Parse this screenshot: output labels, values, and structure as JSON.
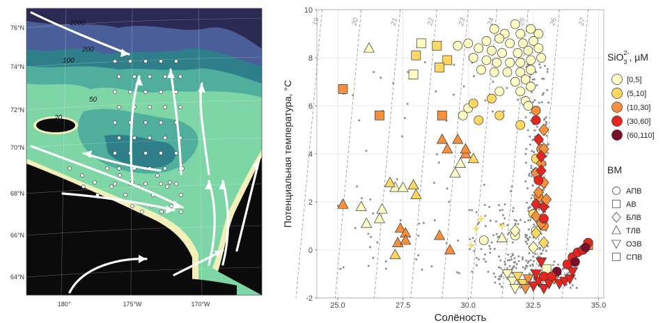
{
  "map": {
    "lat_labels": [
      "76°N",
      "74°N",
      "72°N",
      "70°N",
      "68°N",
      "66°N",
      "64°N"
    ],
    "lon_labels": [
      "180°",
      "175°W",
      "170°W"
    ],
    "depth_labels": [
      "1000",
      "200",
      "100",
      "50",
      "20"
    ],
    "colors": {
      "land": "#0b0b0b",
      "coast": "#f3efb9",
      "shelf_light": "#7ed6a6",
      "shelf_mid": "#4fae9c",
      "shelf_dark": "#2f7f8a",
      "slope": "#4a5f9a",
      "deep": "#2a2a55",
      "abyss": "#1a1730"
    }
  },
  "chart_data": {
    "type": "scatter",
    "xlabel": "Солёность",
    "ylabel": "Потенциальная температура, °C",
    "xlim": [
      24.2,
      35.2
    ],
    "ylim": [
      -2,
      10
    ],
    "xticks": [
      "25.0",
      "27.5",
      "30.0",
      "32.5",
      "35.0"
    ],
    "yticks": [
      "-2",
      "0",
      "2",
      "4",
      "6",
      "8",
      "10"
    ],
    "density_isolines": [
      "19",
      "20",
      "21",
      "22",
      "23",
      "24",
      "25",
      "26",
      "27"
    ],
    "grid": true,
    "legend_si": {
      "title_main": "SiO",
      "title_sub": "3",
      "title_sup": "2-",
      "title_unit": ", µM",
      "labels": [
        "[0,5]",
        "(5,10]",
        "(10,30]",
        "(30,60]",
        "(60,110]"
      ],
      "colors": [
        "#ffffc4",
        "#fdd862",
        "#f6903c",
        "#e3261f",
        "#7b0f2a"
      ]
    },
    "legend_wm": {
      "title": "ВМ",
      "labels": [
        "АПВ",
        "АВ",
        "БЛВ",
        "ТЛВ",
        "ОЗВ",
        "СПВ"
      ],
      "shapes": [
        "circle",
        "square",
        "diamond",
        "triangle",
        "triangle-down",
        "square"
      ]
    },
    "points": [
      {
        "s": 31.0,
        "t": 9.2,
        "m": "circle",
        "c": 0
      },
      {
        "s": 31.4,
        "t": 9.0,
        "m": "circle",
        "c": 0
      },
      {
        "s": 31.8,
        "t": 9.4,
        "m": "circle",
        "c": 0
      },
      {
        "s": 32.0,
        "t": 9.0,
        "m": "circle",
        "c": 0
      },
      {
        "s": 32.4,
        "t": 9.2,
        "m": "circle",
        "c": 0
      },
      {
        "s": 32.7,
        "t": 9.0,
        "m": "circle",
        "c": 0
      },
      {
        "s": 30.7,
        "t": 8.7,
        "m": "circle",
        "c": 0
      },
      {
        "s": 31.2,
        "t": 8.8,
        "m": "circle",
        "c": 0
      },
      {
        "s": 31.6,
        "t": 8.6,
        "m": "circle",
        "c": 0
      },
      {
        "s": 32.1,
        "t": 8.6,
        "m": "circle",
        "c": 0
      },
      {
        "s": 32.5,
        "t": 8.7,
        "m": "circle",
        "c": 0
      },
      {
        "s": 30.0,
        "t": 8.6,
        "m": "circle",
        "c": 0
      },
      {
        "s": 29.6,
        "t": 8.5,
        "m": "circle",
        "c": 0
      },
      {
        "s": 30.4,
        "t": 8.4,
        "m": "circle",
        "c": 0
      },
      {
        "s": 30.9,
        "t": 8.3,
        "m": "circle",
        "c": 0
      },
      {
        "s": 31.3,
        "t": 8.2,
        "m": "circle",
        "c": 0
      },
      {
        "s": 31.9,
        "t": 8.2,
        "m": "circle",
        "c": 0
      },
      {
        "s": 32.3,
        "t": 8.3,
        "m": "circle",
        "c": 0
      },
      {
        "s": 32.7,
        "t": 8.4,
        "m": "circle",
        "c": 0
      },
      {
        "s": 30.2,
        "t": 8.0,
        "m": "circle",
        "c": 0
      },
      {
        "s": 30.7,
        "t": 7.9,
        "m": "circle",
        "c": 0
      },
      {
        "s": 31.1,
        "t": 7.8,
        "m": "circle",
        "c": 0
      },
      {
        "s": 31.6,
        "t": 7.8,
        "m": "circle",
        "c": 0
      },
      {
        "s": 32.0,
        "t": 7.8,
        "m": "circle",
        "c": 0
      },
      {
        "s": 32.4,
        "t": 7.9,
        "m": "circle",
        "c": 0
      },
      {
        "s": 32.8,
        "t": 8.0,
        "m": "circle",
        "c": 0
      },
      {
        "s": 30.5,
        "t": 7.5,
        "m": "circle",
        "c": 0
      },
      {
        "s": 31.0,
        "t": 7.4,
        "m": "circle",
        "c": 0
      },
      {
        "s": 31.5,
        "t": 7.4,
        "m": "circle",
        "c": 0
      },
      {
        "s": 32.0,
        "t": 7.4,
        "m": "circle",
        "c": 0
      },
      {
        "s": 32.4,
        "t": 7.5,
        "m": "circle",
        "c": 0
      },
      {
        "s": 32.2,
        "t": 7.1,
        "m": "circle",
        "c": 0
      },
      {
        "s": 31.8,
        "t": 7.0,
        "m": "circle",
        "c": 0
      },
      {
        "s": 32.4,
        "t": 6.8,
        "m": "circle",
        "c": 0
      },
      {
        "s": 32.0,
        "t": 6.6,
        "m": "circle",
        "c": 0
      },
      {
        "s": 31.2,
        "t": 6.6,
        "m": "circle",
        "c": 0
      },
      {
        "s": 32.2,
        "t": 6.2,
        "m": "circle",
        "c": 0
      },
      {
        "s": 30.0,
        "t": 5.9,
        "m": "circle",
        "c": 0
      },
      {
        "s": 32.3,
        "t": 6.0,
        "m": "circle",
        "c": 0
      },
      {
        "s": 29.8,
        "t": 5.6,
        "m": "circle",
        "c": 0
      },
      {
        "s": 31.2,
        "t": 5.6,
        "m": "circle",
        "c": 1
      },
      {
        "s": 30.2,
        "t": 6.1,
        "m": "circle",
        "c": 1
      },
      {
        "s": 32.0,
        "t": 5.2,
        "m": "circle",
        "c": 1
      },
      {
        "s": 30.9,
        "t": 6.3,
        "m": "circle",
        "c": 1
      },
      {
        "s": 30.4,
        "t": 5.4,
        "m": "circle",
        "c": 1
      },
      {
        "s": 32.6,
        "t": 3.8,
        "m": "circle",
        "c": 1
      },
      {
        "s": 32.5,
        "t": 1.5,
        "m": "circle",
        "c": 1
      },
      {
        "s": 32.6,
        "t": 0.8,
        "m": "circle",
        "c": 0
      },
      {
        "s": 31.8,
        "t": 0.6,
        "m": "circle",
        "c": 0
      },
      {
        "s": 30.6,
        "t": 0.4,
        "m": "circle",
        "c": 0
      },
      {
        "s": 32.8,
        "t": 4.2,
        "m": "circle",
        "c": 2
      },
      {
        "s": 32.7,
        "t": 2.2,
        "m": "circle",
        "c": 2
      },
      {
        "s": 32.9,
        "t": 1.0,
        "m": "circle",
        "c": 2
      },
      {
        "s": 32.6,
        "t": 5.8,
        "m": "circle",
        "c": 2
      },
      {
        "s": 28.2,
        "t": 8.6,
        "m": "square",
        "c": 0
      },
      {
        "s": 28.0,
        "t": 8.1,
        "m": "square",
        "c": 1
      },
      {
        "s": 28.8,
        "t": 8.5,
        "m": "square",
        "c": 1
      },
      {
        "s": 29.2,
        "t": 7.9,
        "m": "square",
        "c": 1
      },
      {
        "s": 27.9,
        "t": 7.3,
        "m": "square",
        "c": 0
      },
      {
        "s": 28.9,
        "t": 7.6,
        "m": "square",
        "c": 1
      },
      {
        "s": 25.2,
        "t": 6.7,
        "m": "square",
        "c": 2
      },
      {
        "s": 26.6,
        "t": 5.6,
        "m": "square",
        "c": 2
      },
      {
        "s": 29.0,
        "t": 5.6,
        "m": "square",
        "c": 2
      },
      {
        "s": 34.6,
        "t": 0.2,
        "m": "square",
        "c": 2
      },
      {
        "s": 33.0,
        "t": -0.8,
        "m": "square",
        "c": 0
      },
      {
        "s": 32.7,
        "t": -1.2,
        "m": "square",
        "c": 0
      },
      {
        "s": 32.9,
        "t": 4.2,
        "m": "diamond",
        "c": 2
      },
      {
        "s": 32.8,
        "t": 3.6,
        "m": "diamond",
        "c": 2
      },
      {
        "s": 32.6,
        "t": 3.2,
        "m": "diamond",
        "c": 2
      },
      {
        "s": 32.9,
        "t": 2.8,
        "m": "diamond",
        "c": 2
      },
      {
        "s": 32.7,
        "t": 2.4,
        "m": "diamond",
        "c": 2
      },
      {
        "s": 32.9,
        "t": 1.8,
        "m": "diamond",
        "c": 3
      },
      {
        "s": 32.6,
        "t": 1.4,
        "m": "diamond",
        "c": 2
      },
      {
        "s": 32.8,
        "t": 1.1,
        "m": "diamond",
        "c": 2
      },
      {
        "s": 32.6,
        "t": 0.7,
        "m": "diamond",
        "c": 1
      },
      {
        "s": 32.9,
        "t": 0.3,
        "m": "diamond",
        "c": 1
      },
      {
        "s": 32.7,
        "t": 4.6,
        "m": "diamond",
        "c": 3
      },
      {
        "s": 32.9,
        "t": 5.0,
        "m": "diamond",
        "c": 2
      },
      {
        "s": 32.8,
        "t": 3.3,
        "m": "diamond",
        "c": 3
      },
      {
        "s": 33.0,
        "t": 2.1,
        "m": "diamond",
        "c": 2
      },
      {
        "s": 31.8,
        "t": 0.8,
        "m": "diamond",
        "c": 0
      },
      {
        "s": 32.5,
        "t": 0.1,
        "m": "diamond",
        "c": 0
      },
      {
        "s": 26.2,
        "t": 8.4,
        "m": "triangle",
        "c": 0
      },
      {
        "s": 25.2,
        "t": 1.9,
        "m": "triangle",
        "c": 2
      },
      {
        "s": 25.9,
        "t": 1.8,
        "m": "triangle",
        "c": 0
      },
      {
        "s": 26.7,
        "t": 1.7,
        "m": "triangle",
        "c": 0
      },
      {
        "s": 27.2,
        "t": 2.6,
        "m": "triangle",
        "c": 0
      },
      {
        "s": 27.0,
        "t": 2.8,
        "m": "triangle",
        "c": 1
      },
      {
        "s": 27.5,
        "t": 2.6,
        "m": "triangle",
        "c": 0
      },
      {
        "s": 27.9,
        "t": 2.7,
        "m": "triangle",
        "c": 1
      },
      {
        "s": 28.0,
        "t": 2.3,
        "m": "triangle",
        "c": 1
      },
      {
        "s": 26.1,
        "t": 1.1,
        "m": "triangle",
        "c": 0
      },
      {
        "s": 26.6,
        "t": 1.3,
        "m": "triangle",
        "c": 0
      },
      {
        "s": 27.4,
        "t": 0.9,
        "m": "triangle",
        "c": 2
      },
      {
        "s": 27.6,
        "t": 0.7,
        "m": "triangle",
        "c": 2
      },
      {
        "s": 27.3,
        "t": 0.3,
        "m": "triangle",
        "c": 2
      },
      {
        "s": 27.6,
        "t": 0.4,
        "m": "triangle",
        "c": 2
      },
      {
        "s": 27.2,
        "t": -0.2,
        "m": "triangle",
        "c": 1
      },
      {
        "s": 28.9,
        "t": 0.6,
        "m": "triangle",
        "c": 2
      },
      {
        "s": 29.3,
        "t": 0.0,
        "m": "triangle",
        "c": 2
      },
      {
        "s": 29.0,
        "t": 4.6,
        "m": "triangle",
        "c": 2
      },
      {
        "s": 29.6,
        "t": 4.6,
        "m": "triangle",
        "c": 2
      },
      {
        "s": 29.2,
        "t": 4.2,
        "m": "triangle",
        "c": 2
      },
      {
        "s": 29.9,
        "t": 4.0,
        "m": "triangle",
        "c": 2
      },
      {
        "s": 29.7,
        "t": 3.6,
        "m": "triangle",
        "c": 0
      },
      {
        "s": 29.5,
        "t": 3.2,
        "m": "triangle",
        "c": 0
      },
      {
        "s": 30.2,
        "t": 3.8,
        "m": "triangle",
        "c": 1
      },
      {
        "s": 31.3,
        "t": 0.5,
        "m": "triangle",
        "c": 0
      },
      {
        "s": 29.9,
        "t": 4.2,
        "m": "triangle",
        "c": 2
      },
      {
        "s": 31.5,
        "t": -1.0,
        "m": "triangle-down",
        "c": 0
      },
      {
        "s": 31.7,
        "t": -1.3,
        "m": "triangle-down",
        "c": 0
      },
      {
        "s": 31.9,
        "t": -1.1,
        "m": "triangle-down",
        "c": 1
      },
      {
        "s": 32.1,
        "t": -1.4,
        "m": "triangle-down",
        "c": 1
      },
      {
        "s": 32.3,
        "t": -1.2,
        "m": "triangle-down",
        "c": 2
      },
      {
        "s": 32.5,
        "t": -1.5,
        "m": "triangle-down",
        "c": 3
      },
      {
        "s": 32.7,
        "t": -1.3,
        "m": "triangle-down",
        "c": 3
      },
      {
        "s": 32.9,
        "t": -1.6,
        "m": "triangle-down",
        "c": 3
      },
      {
        "s": 33.1,
        "t": -1.4,
        "m": "triangle-down",
        "c": 3
      },
      {
        "s": 33.3,
        "t": -1.2,
        "m": "triangle-down",
        "c": 2
      },
      {
        "s": 33.5,
        "t": -1.4,
        "m": "triangle-down",
        "c": 3
      },
      {
        "s": 33.7,
        "t": -1.3,
        "m": "triangle-down",
        "c": 3
      },
      {
        "s": 33.9,
        "t": -1.2,
        "m": "triangle-down",
        "c": 3
      },
      {
        "s": 32.6,
        "t": -1.0,
        "m": "triangle-down",
        "c": 3
      },
      {
        "s": 32.2,
        "t": -1.6,
        "m": "triangle-down",
        "c": 2
      },
      {
        "s": 31.8,
        "t": -1.6,
        "m": "triangle-down",
        "c": 0
      },
      {
        "s": 34.0,
        "t": -0.9,
        "m": "triangle-down",
        "c": 3
      },
      {
        "s": 32.8,
        "t": -0.5,
        "m": "triangle-down",
        "c": 3
      },
      {
        "s": 32.6,
        "t": 5.4,
        "m": "circle",
        "c": 3
      },
      {
        "s": 32.8,
        "t": 3.9,
        "m": "diamond",
        "c": 3
      },
      {
        "s": 32.7,
        "t": 2.9,
        "m": "circle",
        "c": 3
      },
      {
        "s": 32.6,
        "t": 1.9,
        "m": "diamond",
        "c": 3
      },
      {
        "s": 32.9,
        "t": 1.3,
        "m": "circle",
        "c": 3
      },
      {
        "s": 33.8,
        "t": -0.6,
        "m": "circle",
        "c": 3
      },
      {
        "s": 34.0,
        "t": -0.3,
        "m": "circle",
        "c": 3
      },
      {
        "s": 34.2,
        "t": -0.1,
        "m": "circle",
        "c": 3
      },
      {
        "s": 34.4,
        "t": 0.0,
        "m": "circle",
        "c": 3
      },
      {
        "s": 34.6,
        "t": 0.3,
        "m": "circle",
        "c": 3
      },
      {
        "s": 33.4,
        "t": -0.9,
        "m": "circle",
        "c": 4
      },
      {
        "s": 34.1,
        "t": -0.5,
        "m": "circle",
        "c": 4
      },
      {
        "s": 34.5,
        "t": 0.1,
        "m": "circle",
        "c": 4
      },
      {
        "s": 32.9,
        "t": -1.1,
        "m": "circle",
        "c": 3
      },
      {
        "s": 33.2,
        "t": -1.1,
        "m": "circle",
        "c": 3
      },
      {
        "s": 30.5,
        "t": 1.3,
        "m": "plus",
        "c": 1
      },
      {
        "s": 30.3,
        "t": 0.9,
        "m": "plus",
        "c": 1
      },
      {
        "s": 30.1,
        "t": 0.2,
        "m": "plus",
        "c": 1
      },
      {
        "s": 31.3,
        "t": 1.0,
        "m": "plus",
        "c": 1
      }
    ]
  }
}
